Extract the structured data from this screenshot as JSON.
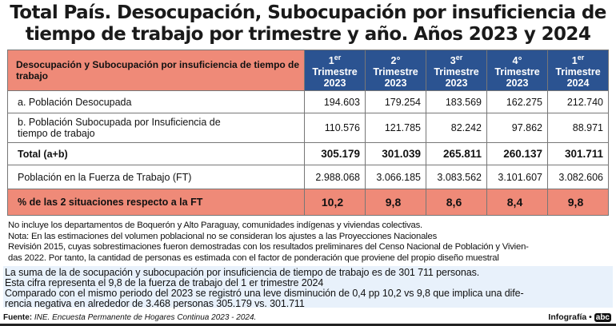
{
  "title": {
    "line1": "Total País. Desocupación, Subocupación por insuficiencia de",
    "line2": "tiempo de trabajo por trimestre y año. Años 2023 y 2024"
  },
  "table": {
    "header_label": "Desocupación y Subocupación por insuficiencia de tiempo de trabajo",
    "columns": [
      {
        "num": "1",
        "sup": "er",
        "label": "Trimestre",
        "year": "2023"
      },
      {
        "num": "2°",
        "sup": "",
        "label": "Trimestre",
        "year": "2023"
      },
      {
        "num": "3",
        "sup": "er",
        "label": "Trimestre",
        "year": "2023"
      },
      {
        "num": "4°",
        "sup": "",
        "label": "Trimestre",
        "year": "2023"
      },
      {
        "num": "1",
        "sup": "er",
        "label": "Trimestre",
        "year": "2024"
      }
    ],
    "rows": [
      {
        "label": "a. Población Desocupada",
        "values": [
          "194.603",
          "179.254",
          "183.569",
          "162.275",
          "212.740"
        ]
      },
      {
        "label": "b. Población Subocupada por Insuficiencia de tiempo de trabajo",
        "values": [
          "110.576",
          "121.785",
          "82.242",
          "97.862",
          "88.971"
        ]
      },
      {
        "label": "Total (a+b)",
        "values": [
          "305.179",
          "301.039",
          "265.811",
          "260.137",
          "301.711"
        ]
      },
      {
        "label": "Población en la Fuerza de Trabajo (FT)",
        "values": [
          "2.988.068",
          "3.066.185",
          "3.083.562",
          "3.101.607",
          "3.082.606"
        ]
      },
      {
        "label": "% de las 2 situaciones respecto a la FT",
        "values": [
          "10,2",
          "9,8",
          "8,6",
          "8,4",
          "9,8"
        ]
      }
    ]
  },
  "notes": [
    "No incluye los departamentos de Boquerón y Alto Paraguay, comunidades indígenas y viviendas colectivas.",
    "Nota: En las estimaciones del volumen poblacional no se consideran los ajustes a las Proyecciones Nacionales",
    "Revisión 2015, cuyas sobrestimaciones fueron demostradas con los resultados preliminares del Censo Nacional de Población y Vivien-",
    "das 2022. Por tanto, la cantidad de personas es estimada con el factor de ponderación que proviene del propio diseño muestral"
  ],
  "summary": [
    "La suma de la de socupación y subocupación por insuficiencia de tiempo de trabajo es de 301 711 personas.",
    "Esta cifra representa el 9,8 de la fuerza de trabajo del 1 er trimestre 2024",
    "Comparado con el mismo periodo del 2023 se registró una leve disminución de 0,4 pp 10,2 vs 9,8 que implica una dife-",
    "rencia negativa en alrededor de 3.468 personas 305.179 vs. 301.711"
  ],
  "footer": {
    "source_label": "Fuente:",
    "source": "INE. Encuesta Permanente de Hogares Continua 2023 - 2024.",
    "credit": "Infografía •",
    "logo": "abc"
  }
}
